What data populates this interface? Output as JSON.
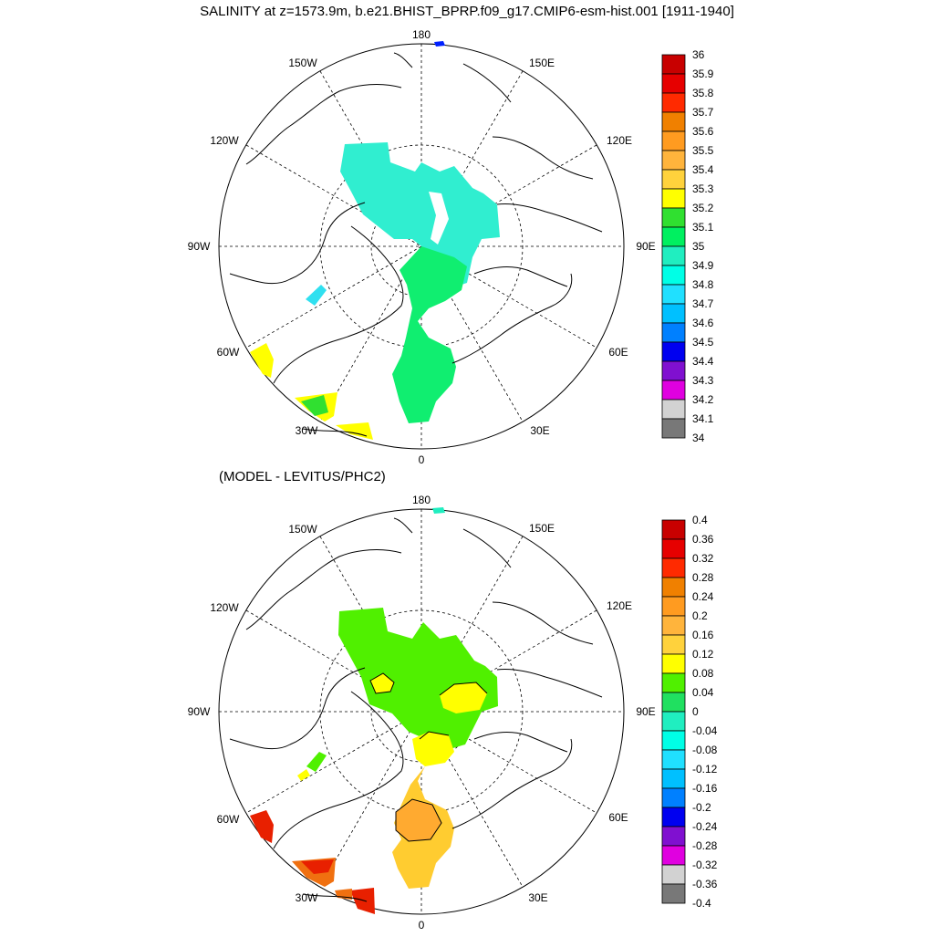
{
  "title": "SALINITY at z=1573.9m, b.e21.BHIST_BPRP.f09_g17.CMIP6-esm-hist.001 [1911-1940]",
  "diff_title": "(MODEL - LEVITUS/PHC2)",
  "lon_labels": {
    "lon_180": "180",
    "lon_150e": "150E",
    "lon_120e": "120E",
    "lon_90e": "90E",
    "lon_60e": "60E",
    "lon_30e": "30E",
    "lon_0": "0",
    "lon_30w": "30W",
    "lon_60w": "60W",
    "lon_90w": "90W",
    "lon_120w": "120W",
    "lon_150w": "150W"
  },
  "colorbars": {
    "salinity": {
      "labels": [
        "36",
        "35.9",
        "35.8",
        "35.7",
        "35.6",
        "35.5",
        "35.4",
        "35.3",
        "35.2",
        "35.1",
        "35",
        "34.9",
        "34.8",
        "34.7",
        "34.6",
        "34.5",
        "34.4",
        "34.3",
        "34.2",
        "34.1",
        "34"
      ],
      "colors": [
        "#c80000",
        "#e60000",
        "#ff2a00",
        "#f08000",
        "#ff9b20",
        "#ffb43c",
        "#ffd23c",
        "#ffff00",
        "#30e030",
        "#00f060",
        "#20eec0",
        "#00ffe6",
        "#20e0ff",
        "#00c0ff",
        "#0080ff",
        "#0000f0",
        "#8010d0",
        "#e000e0",
        "#d2d2d2",
        "#787878"
      ]
    },
    "difference": {
      "labels": [
        "0.4",
        "0.36",
        "0.32",
        "0.28",
        "0.24",
        "0.2",
        "0.16",
        "0.12",
        "0.08",
        "0.04",
        "0",
        "-0.04",
        "-0.08",
        "-0.12",
        "-0.16",
        "-0.2",
        "-0.24",
        "-0.28",
        "-0.32",
        "-0.36",
        "-0.4"
      ],
      "colors": [
        "#c80000",
        "#e60000",
        "#ff2a00",
        "#f08000",
        "#ff9b20",
        "#ffb43c",
        "#ffd23c",
        "#ffff00",
        "#50f000",
        "#20e060",
        "#20eec0",
        "#00ffe6",
        "#20e0ff",
        "#00c0ff",
        "#0080ff",
        "#0000f0",
        "#8010d0",
        "#e000e0",
        "#d2d2d2",
        "#787878"
      ]
    }
  },
  "fill_colors": {
    "top_basin": "#30eed0",
    "top_atlantic": "#10ee70",
    "top_yellow": "#ffff00",
    "top_labrador": "#30e0f0",
    "top_pacific_dot": "#0020ff",
    "bottom_basin": "#50f000",
    "bottom_yellow": "#ffff00",
    "bottom_orange": "#ffcc30",
    "bottom_orange_dark": "#ffaa30",
    "bottom_red": "#e82000",
    "bottom_redorange": "#f07010",
    "bottom_pacific_dot": "#20eec0"
  }
}
